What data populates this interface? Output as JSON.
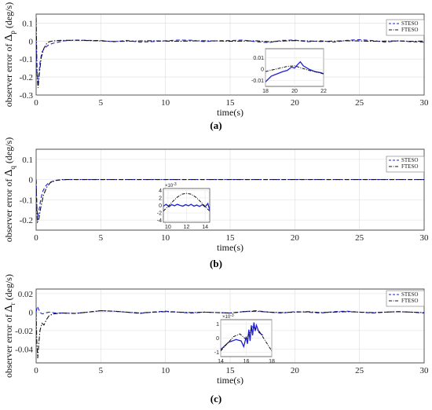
{
  "figure": {
    "captions": [
      "(a)",
      "(b)",
      "(c)"
    ]
  },
  "chart_data": [
    {
      "type": "line",
      "panel": "(a)",
      "xlabel": "time(s)",
      "ylabel_prefix": "observer error of ",
      "ylabel_delta": "Δ",
      "ylabel_sub": "p",
      "ylabel_unit": " (deg/s)",
      "xlim": [
        0,
        30
      ],
      "ylim": [
        -0.3,
        0.15
      ],
      "xticks": [
        0,
        5,
        10,
        15,
        20,
        25,
        30
      ],
      "yticks": [
        -0.3,
        -0.2,
        -0.1,
        0,
        0.1
      ],
      "ytick_labels": [
        "-0.3",
        "-0.2",
        "-0.1",
        "0",
        "0.1"
      ],
      "grid": true,
      "legend_position": "top-right",
      "series": [
        {
          "name": "STESO",
          "color": "#1f1fd6",
          "dash": "5,3",
          "x": [
            0,
            0.05,
            0.15,
            0.3,
            0.45,
            0.6,
            0.8,
            1.0,
            1.3,
            1.7,
            2.2,
            3,
            4,
            5,
            6,
            7,
            8,
            9,
            10,
            11,
            12,
            13,
            14,
            15,
            16,
            17,
            18,
            19,
            20,
            21,
            22,
            23,
            24,
            25,
            26,
            27,
            28,
            29,
            30
          ],
          "y": [
            0.02,
            -0.16,
            -0.23,
            -0.12,
            -0.06,
            -0.045,
            -0.03,
            -0.02,
            -0.012,
            -0.006,
            0.002,
            0.006,
            0.004,
            0.003,
            -0.004,
            0.004,
            -0.006,
            -0.003,
            0.002,
            0.006,
            0.005,
            -0.003,
            0.002,
            0.003,
            0.006,
            -0.004,
            -0.008,
            0.004,
            0.006,
            -0.004,
            0.002,
            -0.006,
            0.004,
            0.008,
            0.003,
            -0.006,
            0.002,
            -0.004,
            -0.006
          ]
        },
        {
          "name": "FTESO",
          "color": "#111111",
          "dash": "6,2,1.5,2",
          "x": [
            0,
            0.03,
            0.08,
            0.15,
            0.25,
            0.4,
            0.6,
            0.8,
            1.0,
            1.3,
            1.6,
            2.0,
            3,
            4,
            5,
            6,
            7,
            8,
            9,
            10,
            11,
            12,
            13,
            14,
            15,
            16,
            17,
            18,
            19,
            20,
            21,
            22,
            23,
            24,
            25,
            26,
            27,
            28,
            29,
            30
          ],
          "y": [
            0.13,
            0.0,
            -0.2,
            -0.26,
            -0.18,
            -0.09,
            -0.04,
            -0.015,
            -0.004,
            0.001,
            0.003,
            0.004,
            0.005,
            0.003,
            0.001,
            -0.002,
            -0.001,
            0.001,
            0.002,
            0.0,
            -0.001,
            0.001,
            0.002,
            0.001,
            -0.001,
            0.0,
            0.002,
            -0.004,
            0.0,
            0.003,
            0.001,
            -0.002,
            0.0,
            0.002,
            0.001,
            -0.001,
            0.0,
            0.001,
            -0.001,
            0.0
          ]
        }
      ],
      "inset": {
        "xlim": [
          18,
          22
        ],
        "ylim": [
          -0.015,
          0.018
        ],
        "xticks": [
          18,
          20,
          22
        ],
        "yticks": [
          -0.01,
          0,
          0.01
        ],
        "ytick_labels": [
          "-0.01",
          "0",
          "0.01"
        ],
        "series": [
          {
            "x": [
              18,
              18.4,
              18.8,
              19.2,
              19.5,
              19.8,
              20.0,
              20.2,
              20.4,
              20.6,
              21.0,
              21.4,
              21.8,
              22
            ],
            "y": [
              -0.011,
              -0.006,
              -0.004,
              -0.002,
              -0.001,
              0.002,
              0.001,
              0.004,
              0.0065,
              0.003,
              0.0,
              -0.002,
              -0.003,
              -0.004
            ]
          },
          {
            "x": [
              18,
              18.5,
              19,
              19.5,
              20,
              20.5,
              21,
              21.5,
              22
            ],
            "y": [
              -0.002,
              -0.0005,
              0.001,
              0.0025,
              0.003,
              0.001,
              -0.001,
              -0.0025,
              -0.004
            ]
          }
        ]
      }
    },
    {
      "type": "line",
      "panel": "(b)",
      "xlabel": "time(s)",
      "ylabel_prefix": "observer error of ",
      "ylabel_delta": "Δ",
      "ylabel_sub": "q",
      "ylabel_unit": " (deg/s)",
      "xlim": [
        0,
        30
      ],
      "ylim": [
        -0.25,
        0.15
      ],
      "xticks": [
        0,
        5,
        10,
        15,
        20,
        25,
        30
      ],
      "yticks": [
        -0.2,
        -0.1,
        0,
        0.1
      ],
      "ytick_labels": [
        "-0.2",
        "-0.1",
        "0",
        "0.1"
      ],
      "grid": true,
      "legend_position": "top-right",
      "series": [
        {
          "name": "STESO",
          "color": "#1f1fd6",
          "dash": "5,3",
          "x": [
            0,
            0.05,
            0.12,
            0.2,
            0.35,
            0.5,
            0.7,
            0.9,
            1.2,
            1.6,
            2.0,
            2.5,
            30
          ],
          "y": [
            0.0,
            -0.12,
            -0.2,
            -0.16,
            -0.1,
            -0.06,
            -0.035,
            -0.02,
            -0.01,
            -0.004,
            -0.001,
            0.0,
            0.0
          ]
        },
        {
          "name": "FTESO",
          "color": "#111111",
          "dash": "6,2,1.5,2",
          "x": [
            0,
            0.05,
            0.1,
            0.2,
            0.35,
            0.55,
            0.8,
            1.1,
            1.5,
            2.0,
            2.5,
            30
          ],
          "y": [
            0.0,
            -0.13,
            -0.21,
            -0.2,
            -0.14,
            -0.08,
            -0.04,
            -0.015,
            -0.004,
            0.0,
            0.0,
            0.0
          ]
        }
      ],
      "inset": {
        "xlim": [
          9.5,
          14.5
        ],
        "ylim": [
          -4.5,
          4.5
        ],
        "xticks": [
          10,
          12,
          14
        ],
        "yticks": [
          -4,
          -2,
          0,
          2,
          4
        ],
        "ytick_labels": [
          "-4",
          "-2",
          "0",
          "2",
          "4"
        ],
        "scale_label": "×10",
        "scale_exp": "-3",
        "series": [
          {
            "x": [
              9.5,
              9.8,
              10.1,
              10.4,
              10.7,
              11,
              11.3,
              11.6,
              11.9,
              12.2,
              12.5,
              12.8,
              13.1,
              13.4,
              13.7,
              14.0,
              14.3,
              14.5
            ],
            "y": [
              -0.2,
              0.3,
              -0.4,
              0.2,
              -0.1,
              0.3,
              0.0,
              -0.2,
              0.2,
              -0.1,
              0.3,
              -0.2,
              0.1,
              -0.3,
              0.2,
              -0.4,
              0.5,
              -1.2
            ]
          },
          {
            "x": [
              9.5,
              10,
              10.5,
              11,
              11.5,
              12,
              12.5,
              13,
              13.5,
              14,
              14.5
            ],
            "y": [
              -1.5,
              -0.3,
              1.0,
              2.2,
              3.0,
              3.2,
              3.0,
              2.2,
              1.0,
              -0.3,
              -1.5
            ]
          }
        ]
      }
    },
    {
      "type": "line",
      "panel": "(c)",
      "xlabel": "time(s)",
      "ylabel_prefix": "observer error of ",
      "ylabel_delta": "Δ",
      "ylabel_sub": "r",
      "ylabel_unit": " (deg/s)",
      "xlim": [
        0,
        30
      ],
      "ylim": [
        -0.055,
        0.025
      ],
      "xticks": [
        0,
        5,
        10,
        15,
        20,
        25,
        30
      ],
      "yticks": [
        -0.04,
        -0.02,
        0,
        0.02
      ],
      "ytick_labels": [
        "-0.04",
        "-0.02",
        "0",
        "0.02"
      ],
      "grid": true,
      "legend_position": "top-right",
      "series": [
        {
          "name": "STESO",
          "color": "#1f1fd6",
          "dash": "5,3",
          "x": [
            0,
            0.1,
            0.2,
            0.35,
            0.5,
            0.7,
            1.0,
            1.5,
            2,
            3,
            4,
            5,
            6,
            7,
            8,
            9,
            10,
            11,
            12,
            13,
            14,
            15,
            16,
            17,
            18,
            19,
            20,
            21,
            22,
            23,
            24,
            25,
            26,
            27,
            28,
            29,
            30
          ],
          "y": [
            0.0,
            0.006,
            0.003,
            -0.001,
            -0.002,
            -0.001,
            0.0,
            -0.001,
            -0.001,
            -0.0015,
            0.0,
            0.0015,
            0.001,
            0.0,
            -0.0015,
            0.0,
            0.001,
            0.0,
            -0.001,
            0.0,
            -0.0005,
            -0.001,
            0.0005,
            0.0015,
            0.0,
            -0.001,
            0.0005,
            0.0,
            -0.001,
            0.0005,
            0.001,
            0.0,
            -0.001,
            0.0,
            0.0005,
            0.0,
            -0.001
          ]
        },
        {
          "name": "FTESO",
          "color": "#111111",
          "dash": "6,2,1.5,2",
          "x": [
            0,
            0.05,
            0.12,
            0.2,
            0.3,
            0.45,
            0.6,
            0.8,
            1.0,
            1.3,
            2,
            3,
            4,
            5,
            6,
            7,
            8,
            9,
            10,
            11,
            12,
            13,
            14,
            15,
            16,
            17,
            18,
            19,
            20,
            21,
            22,
            23,
            24,
            25,
            26,
            27,
            28,
            29,
            30
          ],
          "y": [
            0.0,
            -0.03,
            -0.05,
            -0.035,
            -0.02,
            -0.012,
            -0.014,
            -0.008,
            -0.004,
            -0.002,
            -0.001,
            -0.0015,
            0.0,
            0.0015,
            0.001,
            0.0,
            -0.001,
            0.0,
            0.0005,
            0.0,
            -0.0005,
            0.0,
            -0.0005,
            -0.001,
            0.0005,
            0.001,
            0.0,
            -0.0005,
            0.0,
            0.0005,
            -0.0005,
            0.0,
            0.0005,
            0.0,
            -0.0005,
            0.0,
            0.0005,
            0.0,
            -0.0005
          ]
        }
      ],
      "inset": {
        "xlim": [
          14,
          18
        ],
        "ylim": [
          -1.3,
          1.3
        ],
        "xticks": [
          14,
          16,
          18
        ],
        "yticks": [
          -1,
          0,
          1
        ],
        "ytick_labels": [
          "-1",
          "0",
          "1"
        ],
        "scale_label": "×10",
        "scale_exp": "-3",
        "series": [
          {
            "x": [
              14,
              14.6,
              15.2,
              15.6,
              15.8,
              16.0,
              16.1,
              16.2,
              16.3,
              16.4,
              16.5,
              16.6,
              16.7,
              16.8,
              17.0,
              17.3
            ],
            "y": [
              -0.8,
              -0.3,
              -0.1,
              -0.2,
              -0.6,
              0.1,
              -0.4,
              0.6,
              -0.2,
              0.9,
              0.2,
              1.1,
              0.5,
              0.9,
              0.4,
              0.2
            ]
          },
          {
            "x": [
              14,
              14.5,
              15,
              15.5,
              16,
              16.5,
              17,
              17.5,
              18
            ],
            "y": [
              -0.9,
              -0.4,
              0.1,
              0.3,
              -0.1,
              0.8,
              0.5,
              -0.2,
              -0.9
            ]
          }
        ]
      }
    }
  ]
}
